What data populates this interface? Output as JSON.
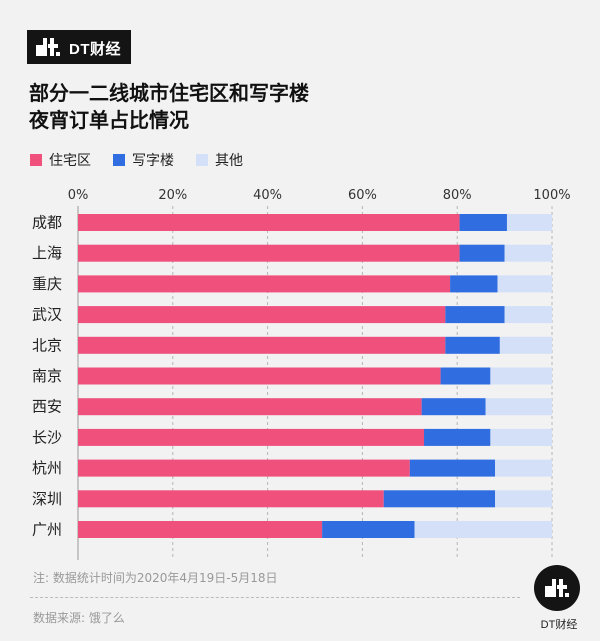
{
  "brand": {
    "name": "DT财经"
  },
  "title": {
    "line1": "部分一二线城市住宅区和写字楼",
    "line2": "夜宵订单占比情况"
  },
  "legend": [
    {
      "label": "住宅区",
      "color": "#f0507c"
    },
    {
      "label": "写字楼",
      "color": "#2f6de0"
    },
    {
      "label": "其他",
      "color": "#d3e0f7"
    }
  ],
  "chart_data": {
    "type": "bar",
    "orientation": "horizontal",
    "stacked": true,
    "categories": [
      "成都",
      "上海",
      "重庆",
      "武汉",
      "北京",
      "南京",
      "西安",
      "长沙",
      "杭州",
      "深圳",
      "广州"
    ],
    "series": [
      {
        "name": "住宅区",
        "color": "#f0507c",
        "values": [
          80.5,
          80.5,
          78.5,
          77.5,
          77.5,
          76.5,
          72.5,
          73,
          70,
          64.5,
          51.5
        ]
      },
      {
        "name": "写字楼",
        "color": "#2f6de0",
        "values": [
          10,
          9.5,
          10,
          12.5,
          11.5,
          10.5,
          13.5,
          14,
          18,
          23.5,
          19.5
        ]
      },
      {
        "name": "其他",
        "color": "#d3e0f7",
        "values": [
          9.5,
          10,
          11.5,
          10,
          11,
          13,
          14,
          13,
          12,
          12,
          29
        ]
      }
    ],
    "xlim": [
      0,
      100
    ],
    "xticks": [
      "0%",
      "20%",
      "40%",
      "60%",
      "80%",
      "100%"
    ],
    "xtick_values": [
      0,
      20,
      40,
      60,
      80,
      100
    ],
    "grid": "vertical-dashed"
  },
  "footer": {
    "note": "注: 数据统计时间为2020年4月19日-5月18日",
    "source": "数据来源: 饿了么",
    "logo_text": "DT财经"
  }
}
